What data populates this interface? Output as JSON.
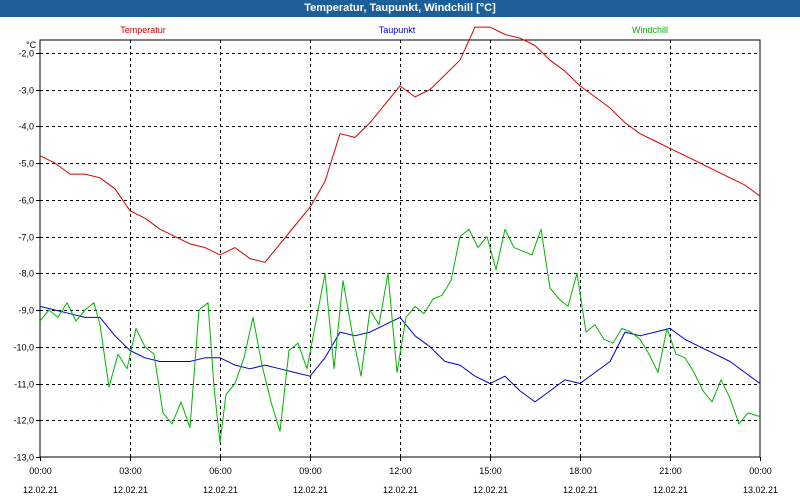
{
  "window": {
    "title": "Temperatur, Taupunkt, Windchill [°C]"
  },
  "chart_data": {
    "type": "line",
    "title": "Temperatur, Taupunkt, Windchill [°C]",
    "ylabel": "°C",
    "ylim": [
      -13.0,
      -1.0
    ],
    "yticks": [
      "-2,0",
      "-3,0",
      "-4,0",
      "-5,0",
      "-6,0",
      "-7,0",
      "-8,0",
      "-9,0",
      "-10,0",
      "-11,0",
      "-12,0",
      "-13,0"
    ],
    "ytick_values": [
      -2,
      -3,
      -4,
      -5,
      -6,
      -7,
      -8,
      -9,
      -10,
      -11,
      -12,
      -13
    ],
    "xlim": [
      0,
      24
    ],
    "xticks": [
      {
        "time": "00:00",
        "date": "12.02.21"
      },
      {
        "time": "03:00",
        "date": "12.02.21"
      },
      {
        "time": "06:00",
        "date": "12.02.21"
      },
      {
        "time": "09:00",
        "date": "12.02.21"
      },
      {
        "time": "12:00",
        "date": "12.02.21"
      },
      {
        "time": "15:00",
        "date": "12.02.21"
      },
      {
        "time": "18:00",
        "date": "12.02.21"
      },
      {
        "time": "21:00",
        "date": "12.02.21"
      },
      {
        "time": "00:00",
        "date": "13.02.21"
      }
    ],
    "grid": true,
    "legend": "top",
    "series": [
      {
        "name": "Temperatur",
        "color": "#d40000",
        "x": [
          0,
          0.5,
          1,
          1.5,
          2,
          2.5,
          3,
          3.5,
          4,
          4.5,
          5,
          5.5,
          6,
          6.5,
          7,
          7.5,
          8,
          8.5,
          9,
          9.5,
          10,
          10.5,
          11,
          11.5,
          12,
          12.5,
          13,
          13.5,
          14,
          14.5,
          15,
          15.5,
          16,
          16.5,
          17,
          17.5,
          18,
          18.5,
          19,
          19.5,
          20,
          20.5,
          21,
          21.5,
          22,
          22.5,
          23,
          23.5,
          24
        ],
        "values": [
          -4.8,
          -5.0,
          -5.3,
          -5.3,
          -5.4,
          -5.7,
          -6.3,
          -6.5,
          -6.8,
          -7.0,
          -7.2,
          -7.3,
          -7.5,
          -7.3,
          -7.6,
          -7.7,
          -7.2,
          -6.7,
          -6.2,
          -5.5,
          -4.2,
          -4.3,
          -3.9,
          -3.4,
          -2.9,
          -3.2,
          -3.0,
          -2.6,
          -2.2,
          -1.3,
          -1.3,
          -1.5,
          -1.6,
          -1.8,
          -2.2,
          -2.5,
          -2.9,
          -3.2,
          -3.5,
          -3.9,
          -4.2,
          -4.4,
          -4.6,
          -4.8,
          -5.0,
          -5.2,
          -5.4,
          -5.6,
          -5.9
        ]
      },
      {
        "name": "Taupunkt",
        "color": "#0000c8",
        "x": [
          0,
          0.5,
          1,
          1.5,
          2,
          2.5,
          3,
          3.5,
          4,
          4.5,
          5,
          5.5,
          6,
          6.5,
          7,
          7.5,
          8,
          8.5,
          9,
          9.5,
          10,
          10.5,
          11,
          11.5,
          12,
          12.5,
          13,
          13.5,
          14,
          14.5,
          15,
          15.5,
          16,
          16.5,
          17,
          17.5,
          18,
          18.5,
          19,
          19.5,
          20,
          20.5,
          21,
          21.5,
          22,
          22.5,
          23,
          23.5,
          24
        ],
        "values": [
          -8.9,
          -9.0,
          -9.1,
          -9.2,
          -9.2,
          -9.7,
          -10.1,
          -10.3,
          -10.4,
          -10.4,
          -10.4,
          -10.3,
          -10.3,
          -10.5,
          -10.6,
          -10.5,
          -10.6,
          -10.7,
          -10.8,
          -10.3,
          -9.6,
          -9.7,
          -9.6,
          -9.4,
          -9.2,
          -9.7,
          -10.0,
          -10.4,
          -10.5,
          -10.8,
          -11.0,
          -10.8,
          -11.2,
          -11.5,
          -11.2,
          -10.9,
          -11.0,
          -10.7,
          -10.4,
          -9.6,
          -9.7,
          -9.6,
          -9.5,
          -9.8,
          -10.0,
          -10.2,
          -10.4,
          -10.7,
          -11.0
        ]
      },
      {
        "name": "Windchill",
        "color": "#00b400",
        "x": [
          0,
          0.3,
          0.6,
          0.9,
          1.2,
          1.5,
          1.8,
          2.0,
          2.3,
          2.6,
          2.9,
          3.2,
          3.5,
          3.8,
          4.1,
          4.4,
          4.7,
          5.0,
          5.3,
          5.6,
          5.8,
          6.0,
          6.2,
          6.5,
          6.8,
          7.1,
          7.4,
          7.7,
          8.0,
          8.3,
          8.6,
          8.9,
          9.2,
          9.5,
          9.8,
          10.1,
          10.4,
          10.7,
          11.0,
          11.3,
          11.6,
          11.9,
          12.2,
          12.5,
          12.8,
          13.1,
          13.4,
          13.7,
          14.0,
          14.3,
          14.6,
          14.9,
          15.2,
          15.5,
          15.8,
          16.1,
          16.4,
          16.7,
          17.0,
          17.3,
          17.6,
          17.9,
          18.2,
          18.5,
          18.8,
          19.1,
          19.4,
          19.7,
          20.0,
          20.3,
          20.6,
          20.9,
          21.2,
          21.5,
          21.8,
          22.1,
          22.4,
          22.7,
          23.0,
          23.3,
          23.6,
          24.0
        ],
        "values": [
          -9.3,
          -9.0,
          -9.2,
          -8.8,
          -9.3,
          -9.0,
          -8.8,
          -9.4,
          -11.1,
          -10.2,
          -10.6,
          -9.5,
          -10.0,
          -10.2,
          -11.8,
          -12.1,
          -11.5,
          -12.2,
          -9.0,
          -8.8,
          -11.1,
          -12.6,
          -11.3,
          -11.0,
          -10.3,
          -9.2,
          -10.5,
          -11.5,
          -12.3,
          -10.1,
          -9.9,
          -10.6,
          -9.3,
          -8.0,
          -10.6,
          -8.2,
          -9.6,
          -10.8,
          -9.0,
          -9.4,
          -8.0,
          -10.7,
          -9.2,
          -8.9,
          -9.1,
          -8.7,
          -8.6,
          -8.2,
          -7.0,
          -6.8,
          -7.3,
          -7.0,
          -7.9,
          -6.8,
          -7.3,
          -7.4,
          -7.5,
          -6.8,
          -8.4,
          -8.7,
          -8.9,
          -8.0,
          -9.6,
          -9.4,
          -9.8,
          -9.9,
          -9.5,
          -9.6,
          -9.8,
          -10.2,
          -10.7,
          -9.5,
          -10.2,
          -10.3,
          -10.7,
          -11.2,
          -11.5,
          -10.9,
          -11.4,
          -12.1,
          -11.8,
          -11.9
        ]
      }
    ]
  }
}
